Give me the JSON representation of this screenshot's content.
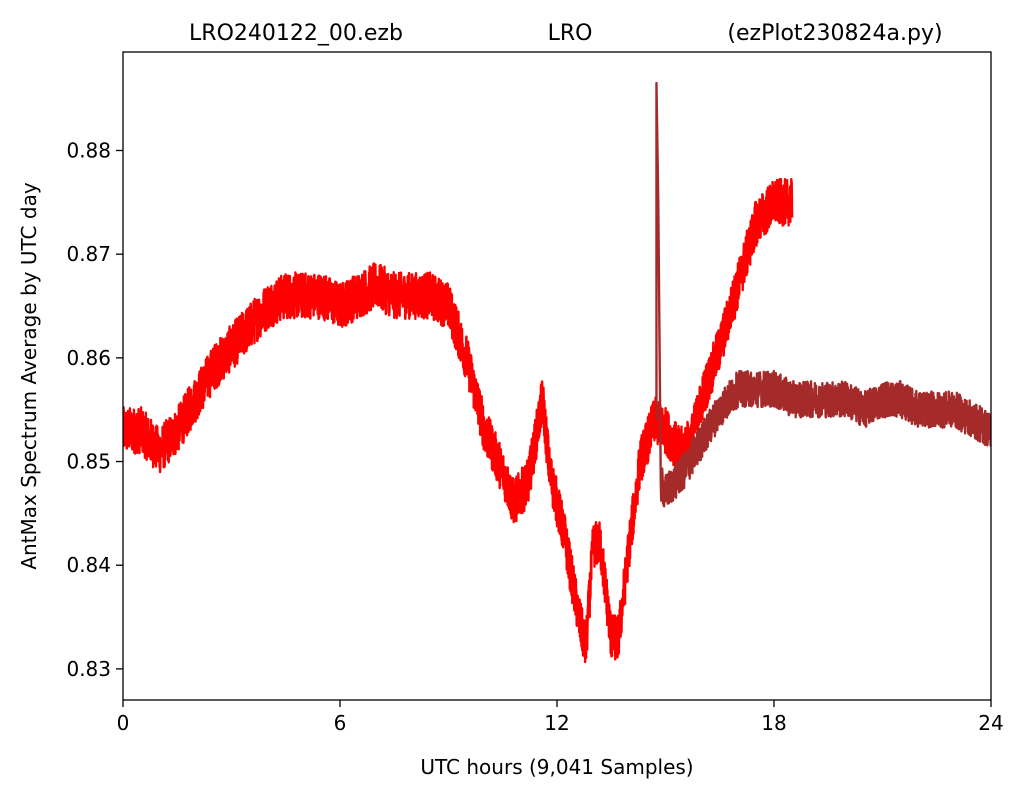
{
  "chart_data": {
    "type": "line",
    "title_left": "LRO240122_00.ezb",
    "title_center": "LRO",
    "title_right": "(ezPlot230824a.py)",
    "xlabel": "UTC hours  (9,041 Samples)",
    "ylabel": "AntMax Spectrum Average by UTC day",
    "xlim": [
      0,
      24
    ],
    "ylim": [
      0.827,
      0.8895
    ],
    "x_ticks": [
      {
        "value": 0,
        "label": "0"
      },
      {
        "value": 6,
        "label": "6"
      },
      {
        "value": 12,
        "label": "12"
      },
      {
        "value": 18,
        "label": "18"
      },
      {
        "value": 24,
        "label": "24"
      }
    ],
    "y_ticks": [
      {
        "value": 0.83,
        "label": "0.83"
      },
      {
        "value": 0.84,
        "label": "0.84"
      },
      {
        "value": 0.85,
        "label": "0.85"
      },
      {
        "value": 0.86,
        "label": "0.86"
      },
      {
        "value": 0.87,
        "label": "0.87"
      },
      {
        "value": 0.88,
        "label": "0.88"
      }
    ],
    "grid": false,
    "series": [
      {
        "color": "#ff0000",
        "noise": 0.0045,
        "points": [
          [
            0.0,
            0.853
          ],
          [
            0.5,
            0.853
          ],
          [
            1.0,
            0.851
          ],
          [
            1.5,
            0.853
          ],
          [
            2.0,
            0.856
          ],
          [
            2.5,
            0.859
          ],
          [
            3.0,
            0.861
          ],
          [
            3.5,
            0.863
          ],
          [
            4.0,
            0.865
          ],
          [
            4.5,
            0.866
          ],
          [
            5.0,
            0.866
          ],
          [
            5.5,
            0.866
          ],
          [
            6.0,
            0.865
          ],
          [
            6.5,
            0.866
          ],
          [
            7.0,
            0.867
          ],
          [
            7.5,
            0.866
          ],
          [
            8.0,
            0.866
          ],
          [
            8.5,
            0.866
          ],
          [
            9.0,
            0.865
          ],
          [
            9.5,
            0.86
          ],
          [
            10.0,
            0.853
          ],
          [
            10.5,
            0.849
          ],
          [
            10.8,
            0.846
          ],
          [
            11.2,
            0.848
          ],
          [
            11.6,
            0.856
          ],
          [
            11.8,
            0.849
          ],
          [
            12.2,
            0.843
          ],
          [
            12.6,
            0.835
          ],
          [
            12.8,
            0.832
          ],
          [
            13.0,
            0.842
          ],
          [
            13.2,
            0.842
          ],
          [
            13.5,
            0.833
          ],
          [
            13.7,
            0.833
          ],
          [
            14.0,
            0.842
          ],
          [
            14.3,
            0.85
          ],
          [
            14.7,
            0.854
          ],
          [
            15.0,
            0.853
          ],
          [
            15.4,
            0.851
          ],
          [
            15.7,
            0.852
          ],
          [
            16.0,
            0.856
          ],
          [
            16.5,
            0.861
          ],
          [
            17.0,
            0.867
          ],
          [
            17.5,
            0.873
          ],
          [
            18.0,
            0.875
          ],
          [
            18.5,
            0.875
          ]
        ]
      },
      {
        "color": "#a52a2a",
        "noise": 0.0035,
        "points": [
          [
            14.75,
            0.854
          ],
          [
            14.85,
            0.848
          ],
          [
            15.0,
            0.847
          ],
          [
            15.5,
            0.849
          ],
          [
            16.0,
            0.852
          ],
          [
            16.5,
            0.855
          ],
          [
            17.0,
            0.857
          ],
          [
            17.5,
            0.857
          ],
          [
            18.0,
            0.857
          ],
          [
            18.5,
            0.856
          ],
          [
            19.0,
            0.856
          ],
          [
            19.5,
            0.856
          ],
          [
            20.0,
            0.856
          ],
          [
            20.5,
            0.855
          ],
          [
            21.0,
            0.856
          ],
          [
            21.5,
            0.856
          ],
          [
            22.0,
            0.855
          ],
          [
            22.5,
            0.855
          ],
          [
            23.0,
            0.855
          ],
          [
            23.5,
            0.854
          ],
          [
            24.0,
            0.853
          ]
        ],
        "spike": {
          "x": 14.75,
          "base": 0.854,
          "peak": 0.8865,
          "end": 0.875
        }
      }
    ]
  }
}
